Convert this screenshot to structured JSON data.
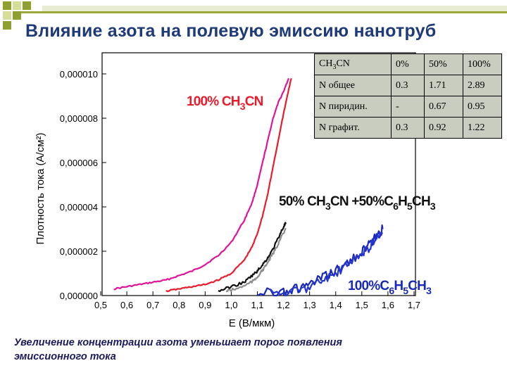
{
  "slide": {
    "title": "Влияние азота на полевую эмиссию нанотруб",
    "caption_line1": "Увеличение концентрации азота уменьшает порог появления",
    "caption_line2": "эмиссионного тока"
  },
  "theme": {
    "accent": "#9aa83a",
    "title_color": "#1f3a7a",
    "caption_color": "#1a1a5e"
  },
  "table": {
    "rows": [
      [
        "CH3CN",
        "0%",
        "50%",
        "100%"
      ],
      [
        "N общее",
        "0.3",
        "1.71",
        "2.89"
      ],
      [
        "N пиридин.",
        "-",
        "0.67",
        "0.95"
      ],
      [
        "N графит.",
        "0.3",
        "0.92",
        "1.22"
      ]
    ],
    "header_sub": "3",
    "header_pre": "CH",
    "header_post": "CN"
  },
  "chart_data": {
    "type": "line",
    "xlabel": "E (В/мкм)",
    "ylabel": "Плотность тока (А/см²)",
    "ylabel_chars": [
      "П",
      "л",
      "о",
      "т",
      "н",
      "о",
      "с",
      "т",
      "ь",
      " ",
      "т",
      "о",
      "к",
      "а",
      " ",
      "(",
      "А",
      "/",
      "с",
      "м",
      "²",
      ")"
    ],
    "xlim": [
      0.5,
      1.7
    ],
    "ylim": [
      0,
      1.05e-05
    ],
    "xticks": [
      "0,5",
      "0,6",
      "0,7",
      "0,8",
      "0,9",
      "1,0",
      "1,1",
      "1,2",
      "1,3",
      "1,4",
      "1,5",
      "1,6",
      "1,7"
    ],
    "yticks": [
      "0,000000",
      "0,000002",
      "0,000004",
      "0,000006",
      "0,000008",
      "0,000010"
    ],
    "series": [
      {
        "name": "100% CH3CN",
        "color": "#e0149a",
        "x": [
          0.55,
          0.6,
          0.65,
          0.7,
          0.75,
          0.8,
          0.85,
          0.9,
          0.95,
          1.0,
          1.05,
          1.08,
          1.1,
          1.12,
          1.14,
          1.16,
          1.18,
          1.2,
          1.22
        ],
        "y": [
          3e-07,
          4e-07,
          5e-07,
          6e-07,
          7e-07,
          9e-07,
          1.1e-06,
          1.4e-06,
          1.8e-06,
          2.4e-06,
          3.4e-06,
          4.2e-06,
          5e-06,
          6e-06,
          7e-06,
          8e-06,
          8.7e-06,
          9.2e-06,
          9.8e-06
        ]
      },
      {
        "name": "100% CH3CN",
        "color": "#e81c2c",
        "x": [
          0.75,
          0.8,
          0.85,
          0.9,
          0.95,
          1.0,
          1.05,
          1.08,
          1.1,
          1.12,
          1.14,
          1.16,
          1.18,
          1.2,
          1.22,
          1.23
        ],
        "y": [
          2e-07,
          3e-07,
          4e-07,
          5e-07,
          7e-07,
          1e-06,
          1.6e-06,
          2.2e-06,
          2.8e-06,
          3.6e-06,
          4.6e-06,
          5.8e-06,
          7e-06,
          8.2e-06,
          9.3e-06,
          9.8e-06
        ]
      },
      {
        "name": "50% CH3CN +50% C6H5CH3",
        "color": "#111111",
        "x": [
          0.95,
          1.0,
          1.05,
          1.08,
          1.1,
          1.12,
          1.14,
          1.16,
          1.18,
          1.2,
          1.21
        ],
        "y": [
          2e-07,
          4e-07,
          6e-07,
          9e-07,
          1.1e-06,
          1.4e-06,
          1.7e-06,
          2.1e-06,
          2.6e-06,
          3.1e-06,
          3.3e-06
        ]
      },
      {
        "name": "50% CH3CN +50% C6H5CH3",
        "color": "#8c8c8c",
        "x": [
          0.98,
          1.02,
          1.06,
          1.09,
          1.11,
          1.13,
          1.15,
          1.17,
          1.19,
          1.21
        ],
        "y": [
          2e-07,
          3e-07,
          5e-07,
          7e-07,
          1e-06,
          1.3e-06,
          1.7e-06,
          2.1e-06,
          2.6e-06,
          3e-06
        ]
      },
      {
        "name": "100% C6H5CH3",
        "color": "#1a2ab8",
        "x": [
          1.1,
          1.2,
          1.25,
          1.3,
          1.35,
          1.4,
          1.45,
          1.5,
          1.53,
          1.56,
          1.58
        ],
        "y": [
          1e-07,
          2e-07,
          3e-07,
          5e-07,
          8e-07,
          1.1e-06,
          1.5e-06,
          2e-06,
          2.3e-06,
          2.7e-06,
          3e-06
        ]
      },
      {
        "name": "100% C6H5CH3",
        "color": "#2435d0",
        "x": [
          1.15,
          1.25,
          1.3,
          1.35,
          1.4,
          1.45,
          1.5,
          1.53,
          1.56,
          1.58
        ],
        "y": [
          1e-07,
          2e-07,
          4e-07,
          7e-07,
          1e-06,
          1.4e-06,
          1.9e-06,
          2.2e-06,
          2.6e-06,
          2.8e-06
        ]
      }
    ],
    "annotations": [
      {
        "text": "100% CH3CN",
        "color": "#e81c2c"
      },
      {
        "text": "50% CH3CN +50% C6H5CH3",
        "color": "#111111"
      },
      {
        "text": "100% C6H5CH3",
        "color": "#1a2ab8"
      }
    ]
  }
}
